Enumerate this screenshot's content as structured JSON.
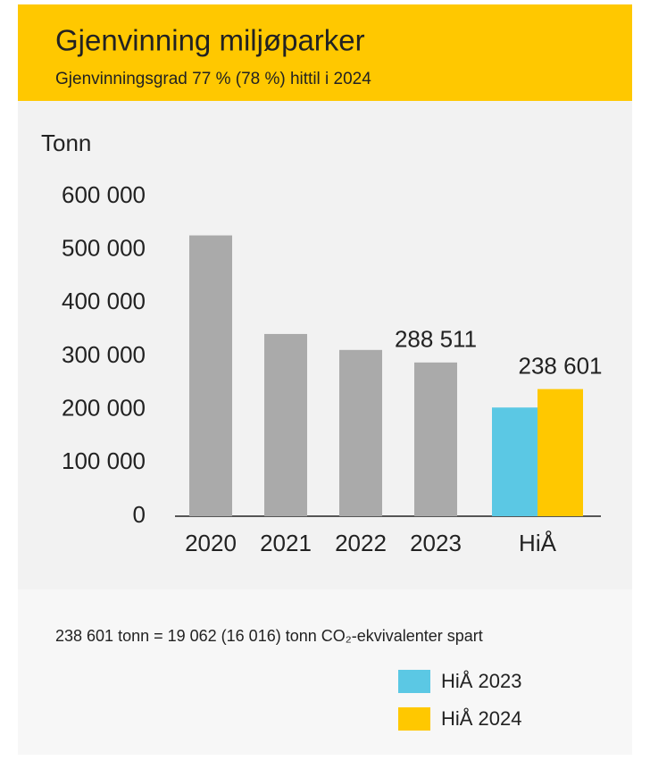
{
  "chart_data": {
    "type": "bar",
    "title": "Gjenvinning miljøparker",
    "subtitle": "Gjenvinningsgrad 77 % (78 %) hittil i 2024",
    "y_label": "Tonn",
    "categories": [
      "2020",
      "2021",
      "2022",
      "2023",
      "HiÅ"
    ],
    "series": [
      {
        "color": "#aaaaaa",
        "values": [
          527000,
          342000,
          312000,
          288511,
          null
        ],
        "value_labels": [
          null,
          null,
          null,
          "288 511",
          null
        ]
      },
      {
        "name": "HiÅ 2023",
        "color": "#5bc8e4",
        "values": [
          null,
          null,
          null,
          null,
          204000
        ]
      },
      {
        "name": "HiÅ 2024",
        "color": "#ffc800",
        "values": [
          null,
          null,
          null,
          null,
          238601
        ],
        "value_labels": [
          null,
          null,
          null,
          null,
          "238 601"
        ]
      }
    ],
    "ylim": [
      0,
      600000
    ],
    "yticks": [
      0,
      {
        "value": 100000,
        "label": "100 000"
      },
      {
        "value": 200000,
        "label": "200 000"
      },
      {
        "value": 300000,
        "label": "300 000"
      },
      {
        "value": 400000,
        "label": "400 000"
      },
      {
        "value": 500000,
        "label": "500 000"
      },
      {
        "value": 600000,
        "label": "600 000"
      }
    ],
    "grid": false,
    "note": "238 601 tonn = 19 062 (16 016) tonn CO₂-ekvivalenter spart"
  }
}
